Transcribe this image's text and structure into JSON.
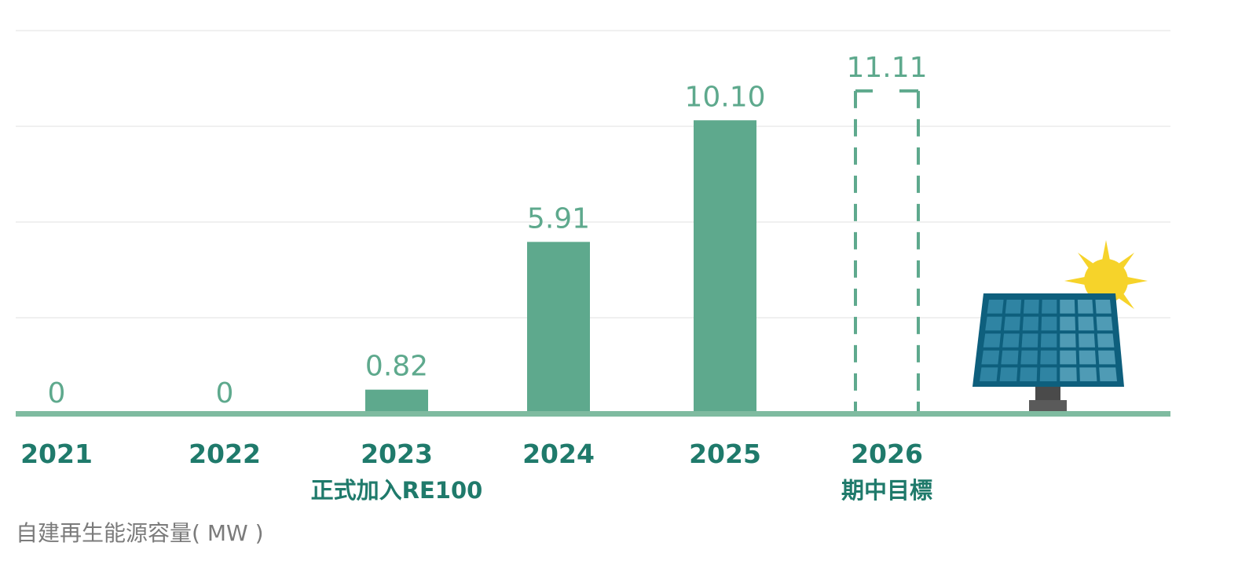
{
  "chart_data": {
    "type": "bar",
    "categories": [
      "2021",
      "2022",
      "2023",
      "2024",
      "2025",
      "2026"
    ],
    "values": [
      0,
      0,
      0.82,
      5.91,
      10.1,
      11.11
    ],
    "value_labels": [
      "0",
      "0",
      "0.82",
      "5.91",
      "10.10",
      "11.11"
    ],
    "target_flags": [
      false,
      false,
      false,
      false,
      false,
      true
    ],
    "annotations": [
      {
        "category": "2023",
        "text": "正式加入RE100"
      },
      {
        "category": "2026",
        "text": "期中目標"
      }
    ],
    "ylabel": "自建再生能源容量( MW )",
    "ylim": [
      0,
      12.5
    ],
    "grid": true,
    "colors": {
      "bar": "#5ea98d",
      "target_outline": "#5ea98d",
      "baseline": "#7fbba0",
      "grid": "#e2e2e2",
      "year_text": "#1f7a6b",
      "value_text": "#5ea98d",
      "caption_text": "#7b7b7b"
    }
  },
  "decoration": {
    "icon": "solar-panel-with-sun-icon",
    "colors": {
      "panel_frame": "#0e5f7d",
      "panel_cell": "#2f84a3",
      "panel_cell_light": "#4f9bb5",
      "stand": "#4a4a4a",
      "sun": "#f6d32a"
    }
  }
}
